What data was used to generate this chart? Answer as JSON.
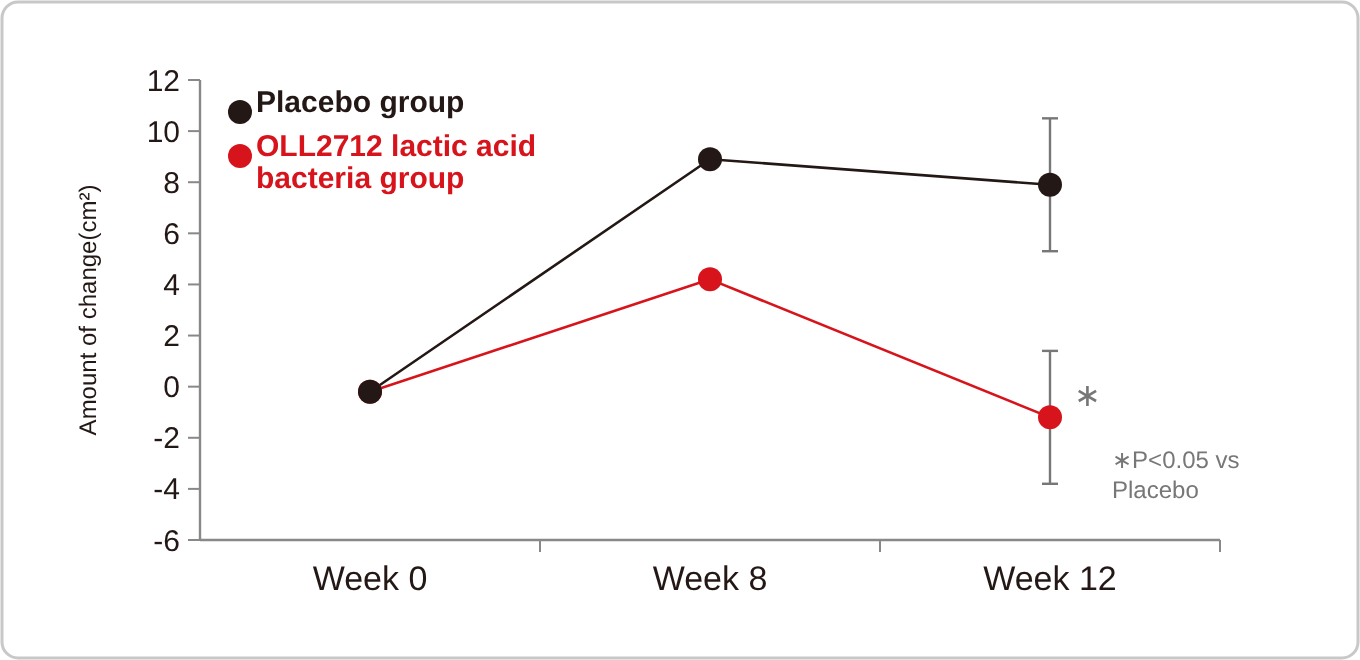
{
  "chart_data": {
    "type": "line",
    "ylabel": "Amount of change(cm²)",
    "categories": [
      "Week 0",
      "Week 8",
      "Week 12"
    ],
    "series": [
      {
        "name": "Placebo group",
        "color": "#231815",
        "values": [
          -0.2,
          8.9,
          7.9
        ],
        "errors": [
          null,
          null,
          2.6
        ]
      },
      {
        "name": "OLL2712 lactic acid bacteria group",
        "color": "#d7141c",
        "values": [
          -0.2,
          4.2,
          -1.2
        ],
        "errors": [
          null,
          null,
          2.6
        ]
      }
    ],
    "ylim": [
      -6,
      12
    ],
    "yticks": [
      -6,
      -4,
      -2,
      0,
      2,
      4,
      6,
      8,
      10,
      12
    ],
    "grid": false,
    "legend": "top left",
    "marker": "circle",
    "line_style": "solid",
    "annotations": [
      {
        "text": "∗",
        "x": "Week 12",
        "y": -0.3
      },
      "∗P<0.05 vs Placebo"
    ]
  }
}
